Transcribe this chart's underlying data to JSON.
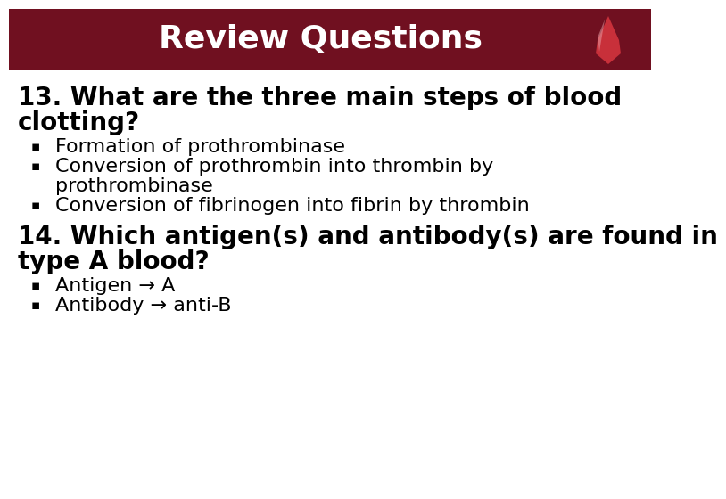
{
  "title": "Review Questions",
  "title_bg_color": "#701020",
  "title_text_color": "#FFFFFF",
  "body_bg_color": "#FFFFFF",
  "body_text_color": "#000000",
  "title_fontsize": 26,
  "q_fontsize": 20,
  "bullet_fontsize": 16,
  "question1_line1": "13. What are the three main steps of blood",
  "question1_line2": "clotting?",
  "bullets1": [
    "Formation of prothrombinase",
    "Conversion of prothrombin into thrombin by",
    "prothrombinase",
    "Conversion of fibrinogen into fibrin by thrombin"
  ],
  "question2_line1": "14. Which antigen(s) and antibody(s) are found in",
  "question2_line2": "type A blood?",
  "bullets2": [
    "Antigen → A",
    "Antibody → anti-B"
  ]
}
